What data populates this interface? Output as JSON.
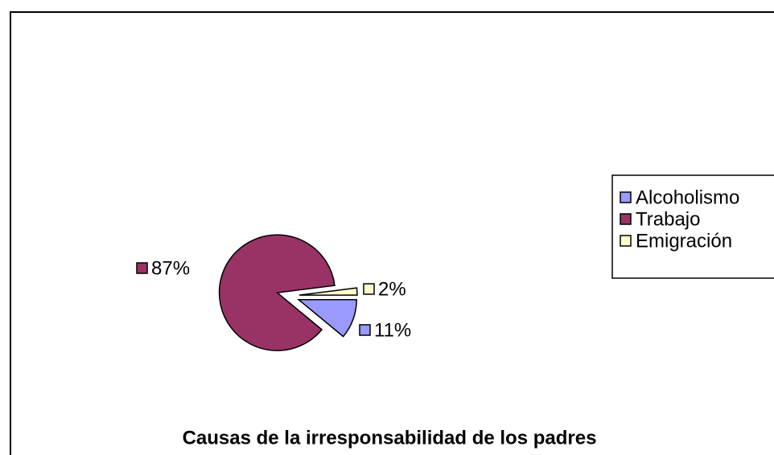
{
  "chart_data": {
    "type": "pie",
    "title": "Causas de la irresponsabilidad de los padres",
    "categories": [
      "Alcoholismo",
      "Trabajo",
      "Emigración"
    ],
    "values": [
      11,
      87,
      2
    ],
    "value_labels": [
      "11%",
      "87%",
      "2%"
    ],
    "colors": [
      "#9999ff",
      "#993366",
      "#ffffcc"
    ],
    "legend": "right"
  }
}
